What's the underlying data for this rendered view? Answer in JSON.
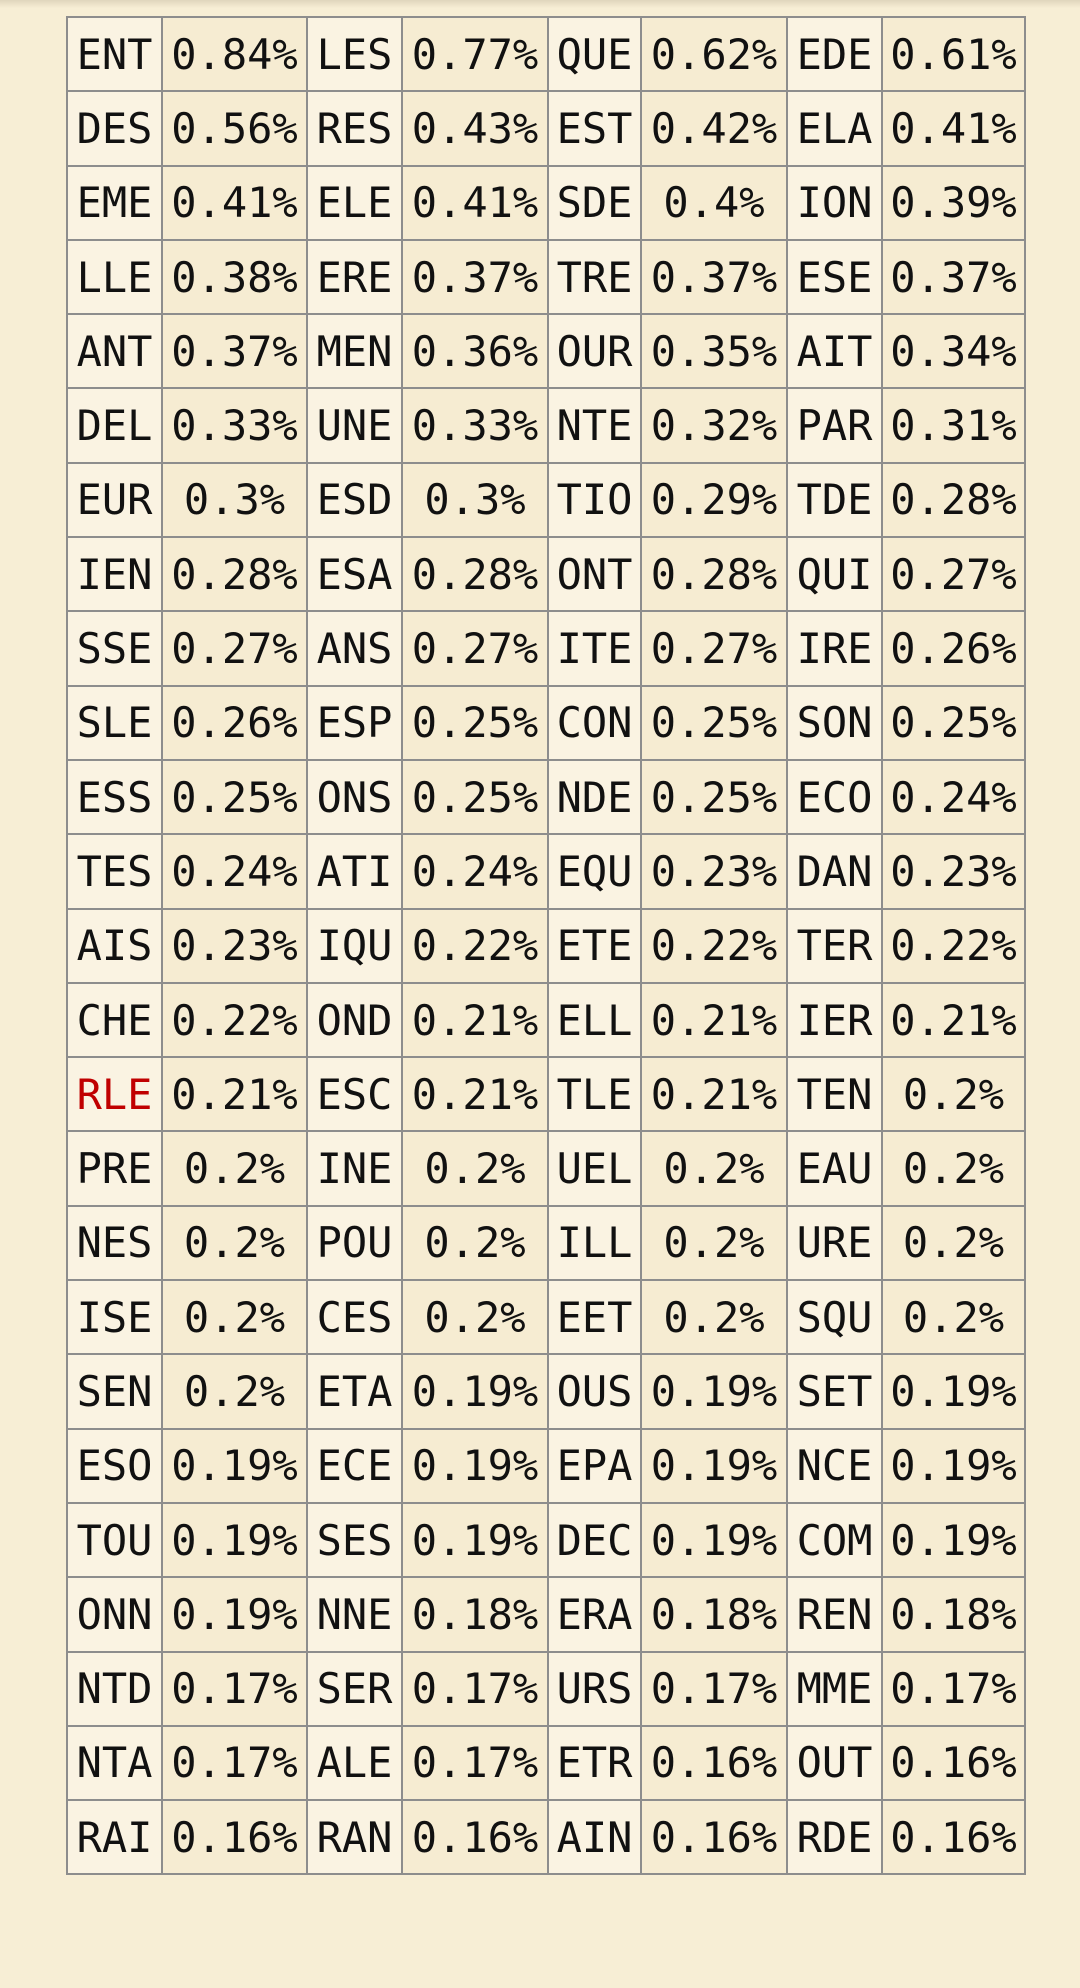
{
  "highlight_color": "#c00000",
  "rows": [
    [
      [
        "ENT",
        "0.84%"
      ],
      [
        "LES",
        "0.77%"
      ],
      [
        "QUE",
        "0.62%"
      ],
      [
        "EDE",
        "0.61%"
      ]
    ],
    [
      [
        "DES",
        "0.56%"
      ],
      [
        "RES",
        "0.43%"
      ],
      [
        "EST",
        "0.42%"
      ],
      [
        "ELA",
        "0.41%"
      ]
    ],
    [
      [
        "EME",
        "0.41%"
      ],
      [
        "ELE",
        "0.41%"
      ],
      [
        "SDE",
        "0.4%"
      ],
      [
        "ION",
        "0.39%"
      ]
    ],
    [
      [
        "LLE",
        "0.38%"
      ],
      [
        "ERE",
        "0.37%"
      ],
      [
        "TRE",
        "0.37%"
      ],
      [
        "ESE",
        "0.37%"
      ]
    ],
    [
      [
        "ANT",
        "0.37%"
      ],
      [
        "MEN",
        "0.36%"
      ],
      [
        "OUR",
        "0.35%"
      ],
      [
        "AIT",
        "0.34%"
      ]
    ],
    [
      [
        "DEL",
        "0.33%"
      ],
      [
        "UNE",
        "0.33%"
      ],
      [
        "NTE",
        "0.32%"
      ],
      [
        "PAR",
        "0.31%"
      ]
    ],
    [
      [
        "EUR",
        "0.3%"
      ],
      [
        "ESD",
        "0.3%"
      ],
      [
        "TIO",
        "0.29%"
      ],
      [
        "TDE",
        "0.28%"
      ]
    ],
    [
      [
        "IEN",
        "0.28%"
      ],
      [
        "ESA",
        "0.28%"
      ],
      [
        "ONT",
        "0.28%"
      ],
      [
        "QUI",
        "0.27%"
      ]
    ],
    [
      [
        "SSE",
        "0.27%"
      ],
      [
        "ANS",
        "0.27%"
      ],
      [
        "ITE",
        "0.27%"
      ],
      [
        "IRE",
        "0.26%"
      ]
    ],
    [
      [
        "SLE",
        "0.26%"
      ],
      [
        "ESP",
        "0.25%"
      ],
      [
        "CON",
        "0.25%"
      ],
      [
        "SON",
        "0.25%"
      ]
    ],
    [
      [
        "ESS",
        "0.25%"
      ],
      [
        "ONS",
        "0.25%"
      ],
      [
        "NDE",
        "0.25%"
      ],
      [
        "ECO",
        "0.24%"
      ]
    ],
    [
      [
        "TES",
        "0.24%"
      ],
      [
        "ATI",
        "0.24%"
      ],
      [
        "EQU",
        "0.23%"
      ],
      [
        "DAN",
        "0.23%"
      ]
    ],
    [
      [
        "AIS",
        "0.23%"
      ],
      [
        "IQU",
        "0.22%"
      ],
      [
        "ETE",
        "0.22%"
      ],
      [
        "TER",
        "0.22%"
      ]
    ],
    [
      [
        "CHE",
        "0.22%"
      ],
      [
        "OND",
        "0.21%"
      ],
      [
        "ELL",
        "0.21%"
      ],
      [
        "IER",
        "0.21%"
      ]
    ],
    [
      [
        "RLE",
        "0.21%"
      ],
      [
        "ESC",
        "0.21%"
      ],
      [
        "TLE",
        "0.21%"
      ],
      [
        "TEN",
        "0.2%"
      ]
    ],
    [
      [
        "PRE",
        "0.2%"
      ],
      [
        "INE",
        "0.2%"
      ],
      [
        "UEL",
        "0.2%"
      ],
      [
        "EAU",
        "0.2%"
      ]
    ],
    [
      [
        "NES",
        "0.2%"
      ],
      [
        "POU",
        "0.2%"
      ],
      [
        "ILL",
        "0.2%"
      ],
      [
        "URE",
        "0.2%"
      ]
    ],
    [
      [
        "ISE",
        "0.2%"
      ],
      [
        "CES",
        "0.2%"
      ],
      [
        "EET",
        "0.2%"
      ],
      [
        "SQU",
        "0.2%"
      ]
    ],
    [
      [
        "SEN",
        "0.2%"
      ],
      [
        "ETA",
        "0.19%"
      ],
      [
        "OUS",
        "0.19%"
      ],
      [
        "SET",
        "0.19%"
      ]
    ],
    [
      [
        "ESO",
        "0.19%"
      ],
      [
        "ECE",
        "0.19%"
      ],
      [
        "EPA",
        "0.19%"
      ],
      [
        "NCE",
        "0.19%"
      ]
    ],
    [
      [
        "TOU",
        "0.19%"
      ],
      [
        "SES",
        "0.19%"
      ],
      [
        "DEC",
        "0.19%"
      ],
      [
        "COM",
        "0.19%"
      ]
    ],
    [
      [
        "ONN",
        "0.19%"
      ],
      [
        "NNE",
        "0.18%"
      ],
      [
        "ERA",
        "0.18%"
      ],
      [
        "REN",
        "0.18%"
      ]
    ],
    [
      [
        "NTD",
        "0.17%"
      ],
      [
        "SER",
        "0.17%"
      ],
      [
        "URS",
        "0.17%"
      ],
      [
        "MME",
        "0.17%"
      ]
    ],
    [
      [
        "NTA",
        "0.17%"
      ],
      [
        "ALE",
        "0.17%"
      ],
      [
        "ETR",
        "0.16%"
      ],
      [
        "OUT",
        "0.16%"
      ]
    ],
    [
      [
        "RAI",
        "0.16%"
      ],
      [
        "RAN",
        "0.16%"
      ],
      [
        "AIN",
        "0.16%"
      ],
      [
        "RDE",
        "0.16%"
      ]
    ]
  ],
  "highlighted_trigrams": [
    "RLE"
  ]
}
